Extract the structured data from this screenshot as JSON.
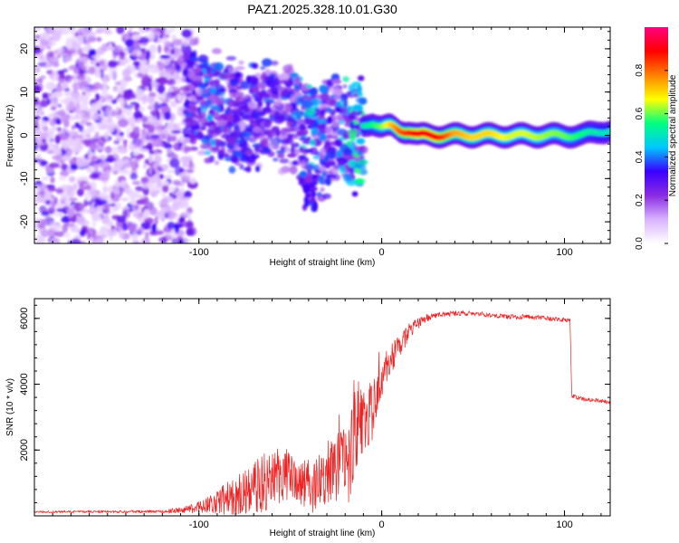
{
  "title": "PAZ1.2025.328.10.01.G30",
  "chart_data": [
    {
      "type": "heatmap",
      "title": "PAZ1.2025.328.10.01.G30",
      "xlabel": "Height of straight line (km)",
      "ylabel": "Frequency (Hz)",
      "xlim": [
        -190,
        125
      ],
      "ylim": [
        -25,
        25
      ],
      "xticks": [
        -100,
        0,
        100
      ],
      "yticks": [
        -20,
        -10,
        0,
        10,
        20
      ],
      "colorbar": {
        "label": "Normalized spectral amplitude",
        "range": [
          0,
          1
        ],
        "ticks": [
          0.0,
          0.2,
          0.4,
          0.6,
          0.8
        ],
        "colors": [
          "#ffffff",
          "#d9b3ff",
          "#8a2be2",
          "#3a00ff",
          "#00c8ff",
          "#00ff80",
          "#ffff00",
          "#ff8000",
          "#ff0000",
          "#ff0080"
        ]
      },
      "ridge": {
        "x": [
          -105,
          -95,
          -85,
          -75,
          -65,
          -55,
          -45,
          -40,
          -35,
          -30,
          -25,
          -20,
          -15,
          -10,
          -5,
          0,
          5,
          10,
          15,
          20,
          30,
          40,
          50,
          60,
          70,
          80,
          90,
          100,
          110,
          120,
          125
        ],
        "y": [
          10,
          7,
          6,
          4,
          4,
          5,
          3,
          0,
          -3,
          -1,
          1,
          2,
          0,
          2,
          3,
          2,
          2,
          1,
          1,
          0,
          0,
          0,
          0,
          0,
          0,
          0,
          0,
          0,
          0,
          1,
          1
        ],
        "amplitude": [
          0.3,
          0.35,
          0.3,
          0.3,
          0.3,
          0.3,
          0.35,
          0.4,
          0.35,
          0.3,
          0.3,
          0.4,
          0.45,
          0.5,
          0.55,
          0.6,
          0.7,
          0.8,
          0.85,
          0.9,
          0.9,
          0.75,
          0.7,
          0.7,
          0.65,
          0.65,
          0.62,
          0.6,
          0.55,
          0.5,
          0.5
        ]
      }
    },
    {
      "type": "line",
      "xlabel": "Height of straight line (km)",
      "ylabel": "SNR (10 * v/v)",
      "xlim": [
        -190,
        125
      ],
      "ylim": [
        0,
        6600
      ],
      "xticks": [
        -100,
        0,
        100
      ],
      "yticks": [
        2000,
        4000,
        6000
      ],
      "color": "#ee2222",
      "series": [
        {
          "name": "SNR",
          "x": [
            -190,
            -120,
            -105,
            -95,
            -80,
            -65,
            -55,
            -45,
            -35,
            -28,
            -22,
            -18,
            -15,
            -12,
            -8,
            -5,
            -2,
            0,
            3,
            8,
            15,
            22,
            30,
            40,
            50,
            60,
            70,
            80,
            90,
            100,
            103,
            104,
            110,
            120,
            125
          ],
          "y": [
            120,
            130,
            200,
            350,
            600,
            1000,
            1300,
            1000,
            900,
            1400,
            1800,
            1500,
            2600,
            2900,
            3000,
            3200,
            3600,
            4000,
            4600,
            5000,
            5600,
            5950,
            6100,
            6150,
            6150,
            6100,
            6050,
            6050,
            6000,
            5950,
            5950,
            3650,
            3550,
            3500,
            3450
          ],
          "noise": [
            30,
            40,
            120,
            300,
            600,
            900,
            900,
            700,
            900,
            1100,
            1400,
            1200,
            1500,
            1200,
            1000,
            900,
            700,
            600,
            500,
            400,
            250,
            150,
            100,
            80,
            70,
            70,
            70,
            70,
            70,
            70,
            60,
            60,
            60,
            60,
            60
          ]
        }
      ]
    }
  ]
}
